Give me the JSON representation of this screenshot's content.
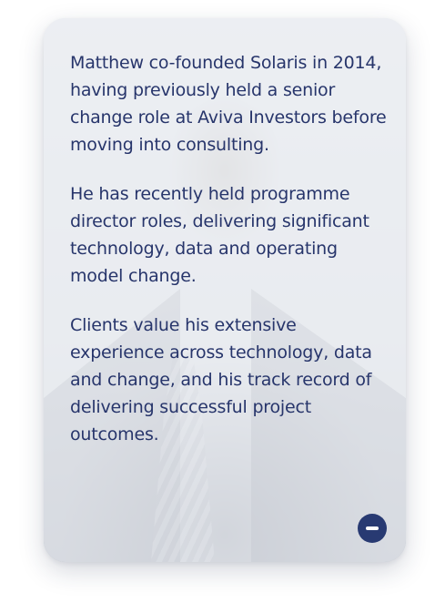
{
  "bio": {
    "paragraphs": [
      "Matthew co-founded Solaris in 2014, having previously held a senior change role at Aviva Investors before moving into consulting.",
      "He has recently held programme director roles, delivering significant technology, data and operating model change.",
      "Clients value his extensive experience across technology, data and change, and his track record of delivering successful project outcomes."
    ]
  },
  "controls": {
    "collapse_icon": "minus-icon"
  },
  "colors": {
    "text": "#27356b",
    "button": "#283a72"
  }
}
